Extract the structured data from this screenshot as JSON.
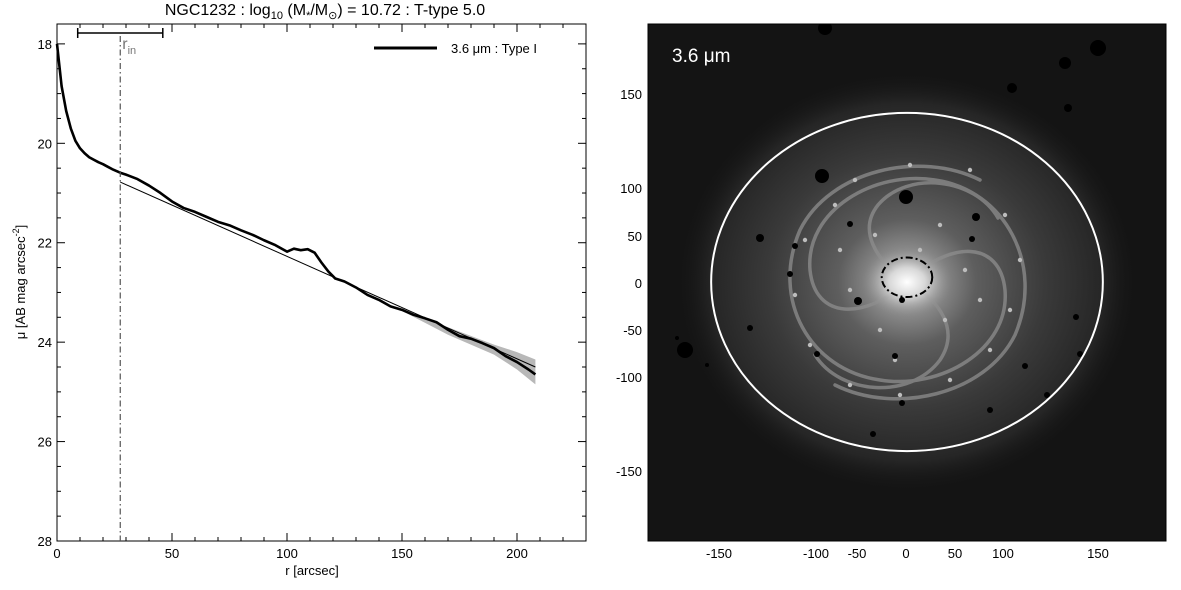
{
  "title": {
    "galaxy": "NGC1232",
    "log_text": "log",
    "log_sub": "10",
    "mass_text": "(M",
    "mass_star_sub": "*",
    "mass_sep": "/M",
    "mass_sun_sub": "⊙",
    "mass_close": ")",
    "mass_value_text": "= 10.72",
    "ttype_text": "T-type 5.0",
    "separator": ":"
  },
  "chart_data": [
    {
      "type": "line",
      "xlabel": "r [arcsec]",
      "ylabel_main": "μ [AB mag arcsec",
      "ylabel_sup": "-2",
      "ylabel_close": "]",
      "xlim": [
        0,
        230
      ],
      "ylim": [
        28,
        17.6
      ],
      "y_inverted": true,
      "xticks": [
        0,
        50,
        100,
        150,
        200
      ],
      "yticks": [
        18,
        20,
        22,
        24,
        26,
        28
      ],
      "grid": false,
      "legend_position": "top-right",
      "legend_label": "3.6 μm : Type I",
      "r_in_label": "r",
      "r_in_sub": "in",
      "r_in": 27.5,
      "scale_bar": [
        9,
        46
      ],
      "series": [
        {
          "name": "3.6 μm : Type I",
          "color": "#000000",
          "x": [
            0,
            2,
            4,
            6,
            8,
            10,
            12,
            14,
            16,
            18,
            20,
            22,
            24,
            26,
            28,
            30,
            35,
            40,
            45,
            50,
            55,
            60,
            65,
            70,
            75,
            80,
            85,
            90,
            95,
            100,
            103,
            106,
            109,
            112,
            115,
            118,
            121,
            125,
            130,
            135,
            140,
            145,
            150,
            155,
            160,
            165,
            170,
            175,
            180,
            185,
            190,
            195,
            200,
            205,
            208
          ],
          "y": [
            18.0,
            18.85,
            19.35,
            19.7,
            19.95,
            20.1,
            20.2,
            20.28,
            20.33,
            20.38,
            20.42,
            20.47,
            20.52,
            20.56,
            20.6,
            20.63,
            20.72,
            20.85,
            21.0,
            21.17,
            21.3,
            21.38,
            21.48,
            21.58,
            21.65,
            21.75,
            21.84,
            21.95,
            22.05,
            22.18,
            22.12,
            22.15,
            22.13,
            22.2,
            22.4,
            22.58,
            22.72,
            22.78,
            22.9,
            23.05,
            23.15,
            23.28,
            23.35,
            23.45,
            23.52,
            23.6,
            23.75,
            23.88,
            23.93,
            24.02,
            24.12,
            24.28,
            24.4,
            24.55,
            24.65
          ]
        },
        {
          "name": "",
          "color": "#000000",
          "x": [
            27.5,
            208
          ],
          "y": [
            20.78,
            24.5
          ]
        }
      ],
      "uncertainty_band": {
        "x": [
          150,
          170,
          190,
          200,
          208
        ],
        "lower": [
          23.33,
          23.7,
          24.05,
          24.2,
          24.35
        ],
        "upper": [
          23.37,
          23.85,
          24.25,
          24.55,
          24.85
        ]
      }
    },
    {
      "type": "image",
      "label": "3.6 μm",
      "xticks": [
        -150,
        -100,
        -50,
        0,
        50,
        100,
        150
      ],
      "yticks": [
        150,
        100,
        50,
        0,
        -50,
        -100,
        -150
      ],
      "xlim": [
        -190,
        190
      ],
      "ylim": [
        -190,
        190
      ],
      "outer_ellipse": {
        "cx": 0,
        "cy": 0,
        "rx": 155,
        "ry": 178,
        "color": "#ffffff",
        "style": "solid"
      },
      "inner_ellipse": {
        "cx": 0,
        "cy": 5,
        "rx": 19,
        "ry": 16,
        "color": "#000000",
        "style": "dash-dot"
      }
    }
  ]
}
